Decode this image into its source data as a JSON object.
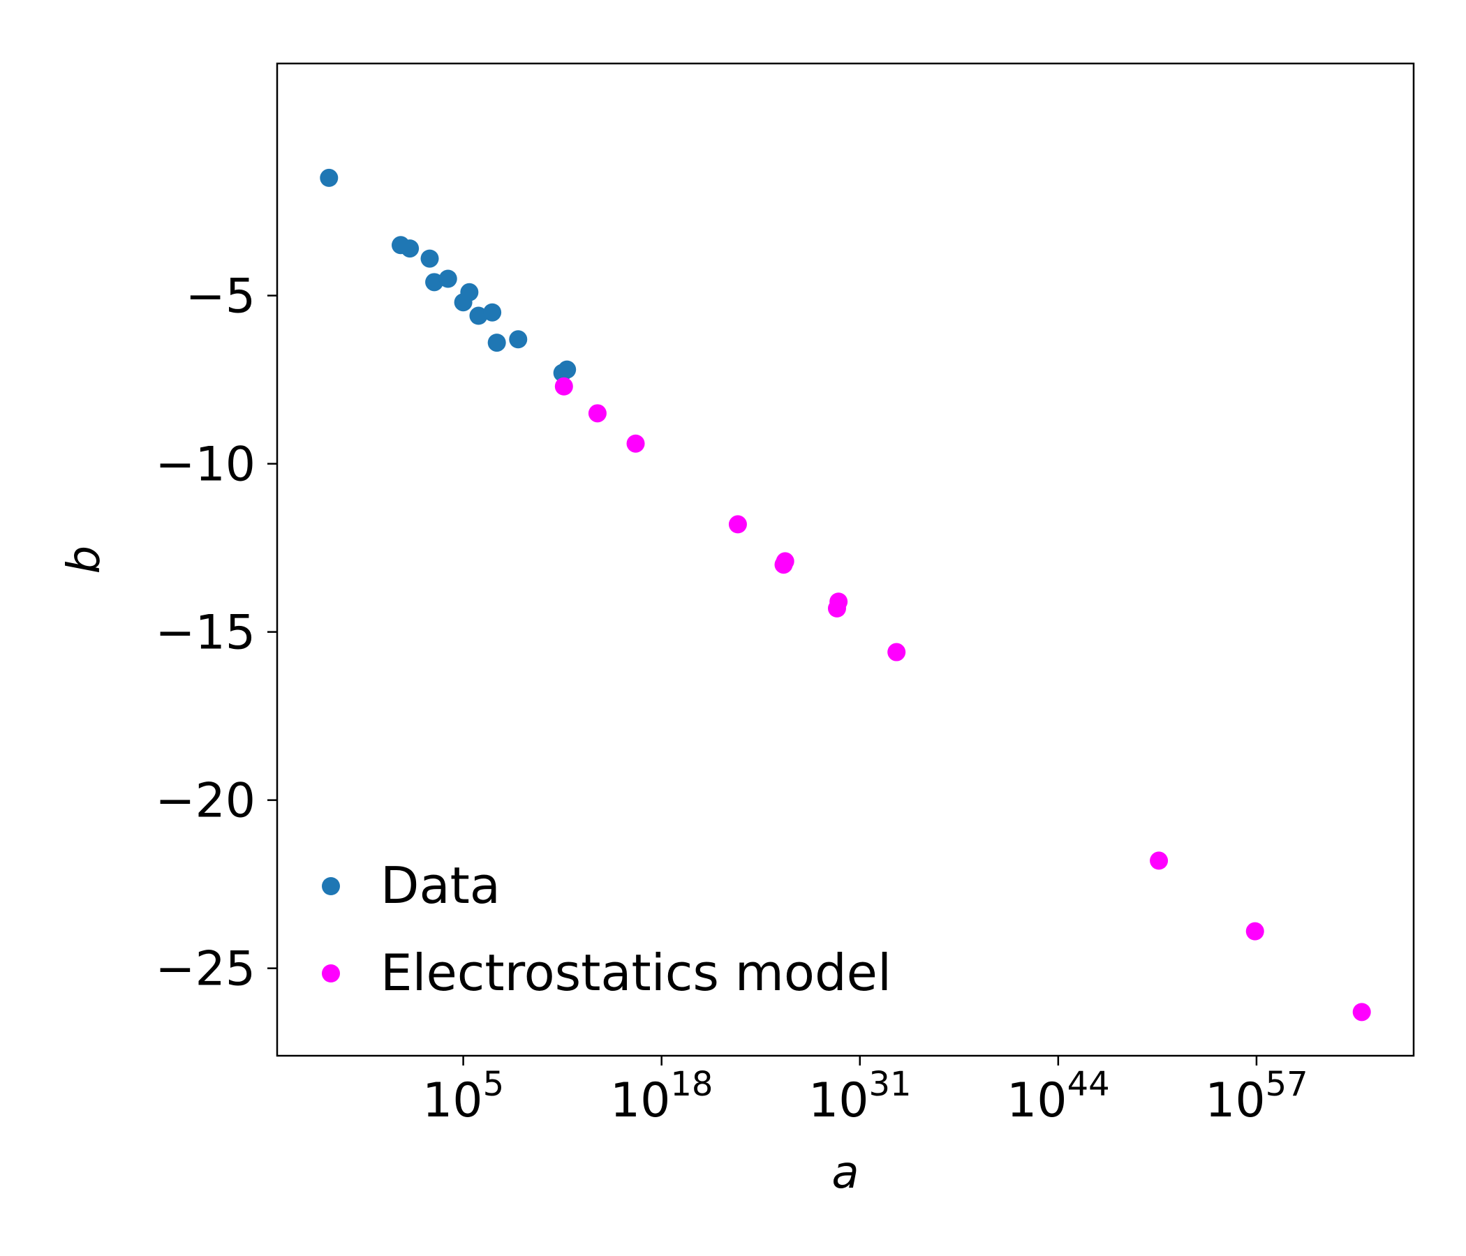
{
  "chart_data": {
    "type": "scatter",
    "xlabel": "a",
    "ylabel": "b",
    "xscale": "log",
    "xlim_log10": [
      -7.2,
      67.3
    ],
    "ylim": [
      -27.6,
      1.9
    ],
    "x_ticks": [
      {
        "base": "10",
        "exp": "5",
        "log10": 5
      },
      {
        "base": "10",
        "exp": "18",
        "log10": 18
      },
      {
        "base": "10",
        "exp": "31",
        "log10": 31
      },
      {
        "base": "10",
        "exp": "44",
        "log10": 44
      },
      {
        "base": "10",
        "exp": "57",
        "log10": 57
      }
    ],
    "y_ticks": [
      {
        "label": "−5",
        "value": -5
      },
      {
        "label": "−10",
        "value": -10
      },
      {
        "label": "−15",
        "value": -15
      },
      {
        "label": "−20",
        "value": -20
      },
      {
        "label": "−25",
        "value": -25
      }
    ],
    "grid": false,
    "legend_position": "lower-left",
    "series": [
      {
        "name": "Data",
        "color": "#1f77b4",
        "points": [
          {
            "x_log10": -3.8,
            "y": -1.5
          },
          {
            "x_log10": 0.9,
            "y": -3.5
          },
          {
            "x_log10": 1.5,
            "y": -3.6
          },
          {
            "x_log10": 2.8,
            "y": -3.9
          },
          {
            "x_log10": 3.1,
            "y": -4.6
          },
          {
            "x_log10": 4.0,
            "y": -4.5
          },
          {
            "x_log10": 5.0,
            "y": -5.2
          },
          {
            "x_log10": 5.4,
            "y": -4.9
          },
          {
            "x_log10": 6.0,
            "y": -5.6
          },
          {
            "x_log10": 6.9,
            "y": -5.5
          },
          {
            "x_log10": 7.2,
            "y": -6.4
          },
          {
            "x_log10": 8.6,
            "y": -6.3
          },
          {
            "x_log10": 11.5,
            "y": -7.3
          },
          {
            "x_log10": 11.8,
            "y": -7.2
          }
        ]
      },
      {
        "name": "Electrostatics model",
        "color": "#ff00ff",
        "points": [
          {
            "x_log10": 11.6,
            "y": -7.7
          },
          {
            "x_log10": 13.8,
            "y": -8.5
          },
          {
            "x_log10": 16.3,
            "y": -9.4
          },
          {
            "x_log10": 23.0,
            "y": -11.8
          },
          {
            "x_log10": 26.1,
            "y": -12.9
          },
          {
            "x_log10": 26.0,
            "y": -13.0
          },
          {
            "x_log10": 29.6,
            "y": -14.1
          },
          {
            "x_log10": 29.5,
            "y": -14.3
          },
          {
            "x_log10": 33.4,
            "y": -15.6
          },
          {
            "x_log10": 50.6,
            "y": -21.8
          },
          {
            "x_log10": 56.9,
            "y": -23.9
          },
          {
            "x_log10": 63.9,
            "y": -26.3
          }
        ]
      }
    ]
  }
}
